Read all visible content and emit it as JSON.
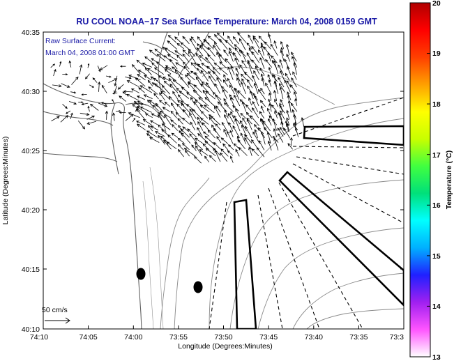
{
  "title": "RU COOL  NOAA−17  Sea Surface Temperature:  March 04, 2008 0159 GMT",
  "current_label": {
    "line1": "Raw Surface Current:",
    "line2": "March 04, 2008 01:00 GMT"
  },
  "scale": {
    "label": "50 cm/s"
  },
  "x_axis": {
    "label": "Longitude (Degrees:Minutes)",
    "ticks": [
      "74:10",
      "74:05",
      "74:00",
      "73:55",
      "73:50",
      "73:45",
      "73:40",
      "73:35",
      "73:3"
    ]
  },
  "y_axis": {
    "label": "Latitude (Degrees:Minutes)",
    "ticks": [
      "40:35",
      "40:30",
      "40:25",
      "40:20",
      "40:15",
      "40:10"
    ]
  },
  "colorbar": {
    "label": "Temperature (°C)",
    "ticks": [
      "20",
      "19",
      "18",
      "17",
      "16",
      "15",
      "14",
      "13"
    ],
    "min": 13,
    "max": 20,
    "stops": [
      "#ffffff",
      "#ff55ff",
      "#a020f0",
      "#2020ff",
      "#00b0ff",
      "#00ffff",
      "#00e07a",
      "#40ff40",
      "#c8ff00",
      "#ffff00",
      "#ffa000",
      "#ff4000",
      "#ff0000",
      "#b00000"
    ]
  }
}
